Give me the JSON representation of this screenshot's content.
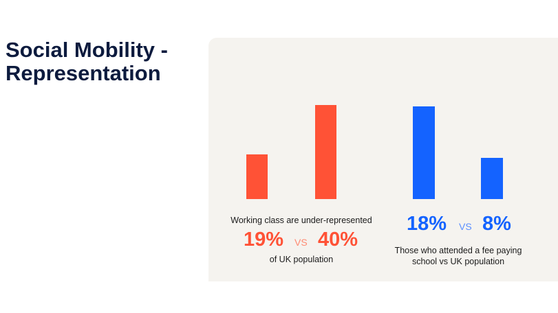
{
  "slide": {
    "title": "Social Mobility - Representation"
  },
  "colors": {
    "working_class": "#ff5236",
    "fee_paying": "#1463ff",
    "vs_orange": "#ff8a72",
    "vs_blue": "#5b8fff",
    "panel": "#f5f3ef",
    "title": "#0d1b3e"
  },
  "chart_data": [
    {
      "type": "bar",
      "categories": [
        "",
        ""
      ],
      "values": [
        19,
        40
      ],
      "ylim": [
        0,
        40
      ],
      "grid": false,
      "color": "#ff5236",
      "caption_top": "Working class are under-represented",
      "value_labels": [
        "19%",
        "40%"
      ],
      "vs_label": "VS",
      "caption_bottom": "of UK population"
    },
    {
      "type": "bar",
      "categories": [
        "",
        ""
      ],
      "values": [
        18,
        8
      ],
      "ylim": [
        0,
        18
      ],
      "grid": false,
      "color": "#1463ff",
      "value_labels": [
        "18%",
        "8%"
      ],
      "vs_label": "VS",
      "caption_bottom": "Those who attended a fee paying school vs UK population"
    }
  ]
}
